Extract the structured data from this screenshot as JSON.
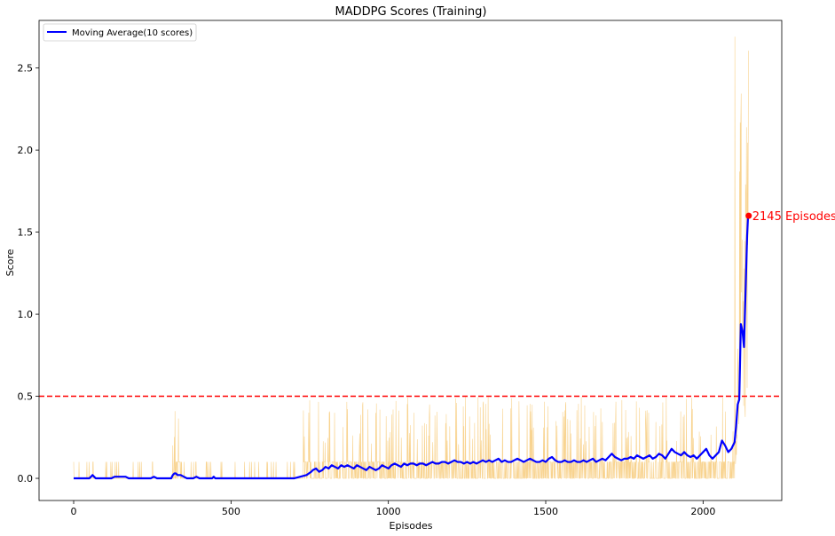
{
  "chart_data": {
    "type": "line",
    "title": "MADDPG Scores (Training)",
    "xlabel": "Episodes",
    "ylabel": "Score",
    "xlim": [
      -110,
      2250
    ],
    "ylim": [
      -0.135,
      2.79
    ],
    "xticks": [
      0,
      500,
      1000,
      1500,
      2000
    ],
    "yticks": [
      0.0,
      0.5,
      1.0,
      1.5,
      2.0,
      2.5
    ],
    "xtick_labels": [
      "0",
      "500",
      "1000",
      "1500",
      "2000"
    ],
    "ytick_labels": [
      "0.0",
      "0.5",
      "1.0",
      "1.5",
      "2.0",
      "2.5"
    ],
    "grid": false,
    "legend": {
      "placement": "upper-left",
      "entries": [
        "Moving Average(10 scores)"
      ]
    },
    "threshold": {
      "y": 0.5,
      "color": "#ff0000",
      "style": "dashed"
    },
    "annotation": {
      "text": "2145 Episodes",
      "x": 2145,
      "y": 1.6,
      "color": "#ff0000"
    },
    "colors": {
      "raw_scores": "#f5c46a",
      "moving_average": "#0000ff",
      "threshold": "#ff0000"
    },
    "series": [
      {
        "name": "Moving Average(10 scores)",
        "style": "line",
        "x": [
          0,
          50,
          55,
          60,
          65,
          70,
          75,
          120,
          130,
          160,
          165,
          175,
          245,
          255,
          265,
          310,
          315,
          320,
          325,
          330,
          340,
          350,
          360,
          380,
          390,
          400,
          440,
          445,
          450,
          700,
          720,
          740,
          755,
          760,
          770,
          780,
          790,
          800,
          810,
          820,
          830,
          840,
          850,
          860,
          870,
          880,
          890,
          900,
          910,
          920,
          930,
          940,
          950,
          960,
          970,
          980,
          990,
          1000,
          1010,
          1020,
          1030,
          1040,
          1050,
          1060,
          1070,
          1080,
          1090,
          1100,
          1110,
          1120,
          1130,
          1140,
          1150,
          1160,
          1170,
          1180,
          1190,
          1200,
          1210,
          1220,
          1230,
          1240,
          1250,
          1260,
          1270,
          1280,
          1290,
          1300,
          1310,
          1320,
          1330,
          1340,
          1350,
          1360,
          1370,
          1380,
          1390,
          1400,
          1410,
          1420,
          1430,
          1440,
          1450,
          1460,
          1470,
          1480,
          1490,
          1500,
          1510,
          1520,
          1530,
          1540,
          1550,
          1560,
          1570,
          1580,
          1590,
          1600,
          1610,
          1620,
          1630,
          1640,
          1650,
          1660,
          1670,
          1680,
          1690,
          1700,
          1710,
          1720,
          1730,
          1740,
          1750,
          1760,
          1770,
          1780,
          1790,
          1800,
          1810,
          1820,
          1830,
          1840,
          1850,
          1860,
          1870,
          1880,
          1890,
          1900,
          1910,
          1920,
          1930,
          1940,
          1950,
          1960,
          1970,
          1980,
          1990,
          2000,
          2010,
          2020,
          2030,
          2040,
          2050,
          2060,
          2070,
          2080,
          2090,
          2100,
          2105,
          2110,
          2115,
          2120,
          2125,
          2130,
          2135,
          2140,
          2143
        ],
        "y": [
          0,
          0,
          0.01,
          0.02,
          0.01,
          0,
          0,
          0,
          0.01,
          0.01,
          0.01,
          0,
          0,
          0.01,
          0,
          0,
          0.02,
          0.03,
          0.03,
          0.02,
          0.02,
          0.01,
          0,
          0,
          0.01,
          0,
          0,
          0.01,
          0,
          0,
          0.01,
          0.02,
          0.04,
          0.05,
          0.06,
          0.04,
          0.05,
          0.07,
          0.06,
          0.08,
          0.07,
          0.06,
          0.08,
          0.07,
          0.08,
          0.07,
          0.06,
          0.08,
          0.07,
          0.06,
          0.05,
          0.07,
          0.06,
          0.05,
          0.06,
          0.08,
          0.07,
          0.06,
          0.08,
          0.09,
          0.08,
          0.07,
          0.09,
          0.08,
          0.09,
          0.09,
          0.08,
          0.09,
          0.09,
          0.08,
          0.09,
          0.1,
          0.09,
          0.09,
          0.1,
          0.1,
          0.09,
          0.1,
          0.11,
          0.1,
          0.1,
          0.09,
          0.1,
          0.09,
          0.1,
          0.09,
          0.1,
          0.11,
          0.1,
          0.11,
          0.1,
          0.11,
          0.12,
          0.1,
          0.11,
          0.1,
          0.1,
          0.11,
          0.12,
          0.11,
          0.1,
          0.11,
          0.12,
          0.11,
          0.1,
          0.1,
          0.11,
          0.1,
          0.12,
          0.13,
          0.11,
          0.1,
          0.1,
          0.11,
          0.1,
          0.1,
          0.11,
          0.1,
          0.1,
          0.11,
          0.1,
          0.11,
          0.12,
          0.1,
          0.11,
          0.12,
          0.11,
          0.13,
          0.15,
          0.13,
          0.12,
          0.11,
          0.12,
          0.12,
          0.13,
          0.12,
          0.14,
          0.13,
          0.12,
          0.13,
          0.14,
          0.12,
          0.13,
          0.15,
          0.14,
          0.12,
          0.15,
          0.18,
          0.16,
          0.15,
          0.14,
          0.16,
          0.14,
          0.13,
          0.14,
          0.12,
          0.14,
          0.16,
          0.18,
          0.14,
          0.12,
          0.14,
          0.16,
          0.23,
          0.2,
          0.16,
          0.18,
          0.22,
          0.32,
          0.45,
          0.48,
          0.94,
          0.9,
          0.8,
          1.14,
          1.48,
          1.6
        ]
      }
    ]
  }
}
